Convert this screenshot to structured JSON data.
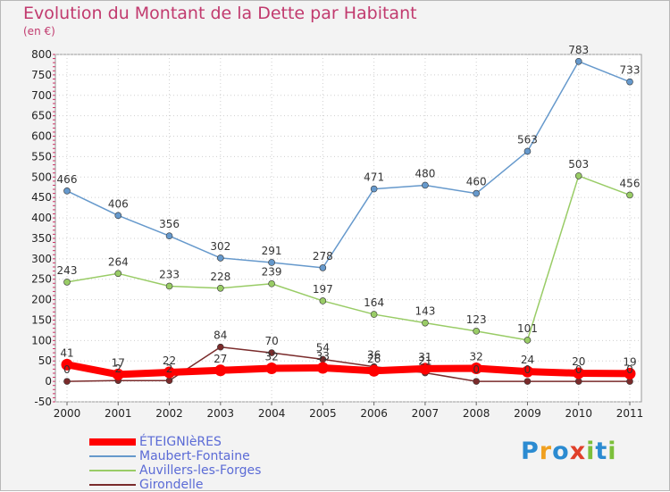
{
  "title": "Evolution du Montant de la Dette par Habitant",
  "unit": "(en €)",
  "logo": {
    "text": "Proxiti",
    "letter_colors": [
      "#2b8bd1",
      "#f0a020",
      "#2b8bd1",
      "#e0402a",
      "#7bbf3a",
      "#2b8bd1",
      "#7bbf3a"
    ]
  },
  "chart_data": {
    "type": "line",
    "x": [
      "2000",
      "2001",
      "2002",
      "2003",
      "2004",
      "2005",
      "2006",
      "2007",
      "2008",
      "2009",
      "2010",
      "2011"
    ],
    "ylim": [
      -50,
      800
    ],
    "yticks": [
      "-50",
      "0",
      "50",
      "100",
      "150",
      "200",
      "250",
      "300",
      "350",
      "400",
      "450",
      "500",
      "550",
      "600",
      "650",
      "700",
      "750",
      "800"
    ],
    "grid": true,
    "legend_position": "bottom-left",
    "series": [
      {
        "name": "ÉTEIGNIèRES",
        "color": "#ff0000",
        "values": [
          41,
          17,
          22,
          27,
          32,
          33,
          26,
          31,
          32,
          24,
          20,
          19
        ],
        "labels": [
          "41",
          "17",
          "22",
          "27",
          "32",
          "33",
          "26",
          "31",
          "32",
          "24",
          "20",
          "19"
        ]
      },
      {
        "name": "Maubert-Fontaine",
        "color": "#6699cc",
        "values": [
          466,
          406,
          356,
          302,
          291,
          278,
          471,
          480,
          460,
          563,
          783,
          733
        ],
        "labels": [
          "466",
          "406",
          "356",
          "302",
          "291",
          "278",
          "471",
          "480",
          "460",
          "563",
          "783",
          "733"
        ]
      },
      {
        "name": "Auvillers-les-Forges",
        "color": "#99cc66",
        "values": [
          243,
          264,
          233,
          228,
          239,
          197,
          164,
          143,
          123,
          101,
          503,
          456
        ],
        "labels": [
          "243",
          "264",
          "233",
          "228",
          "239",
          "197",
          "164",
          "143",
          "123",
          "101",
          "503",
          "456"
        ]
      },
      {
        "name": "Girondelle",
        "color": "#7a2b2b",
        "values": [
          0,
          2,
          2,
          84,
          70,
          54,
          36,
          21,
          0,
          0,
          0,
          0
        ],
        "labels": [
          "0",
          "2",
          "2",
          "84",
          "70",
          "54",
          "36",
          "21",
          "0",
          "0",
          "0",
          "0"
        ]
      }
    ]
  }
}
